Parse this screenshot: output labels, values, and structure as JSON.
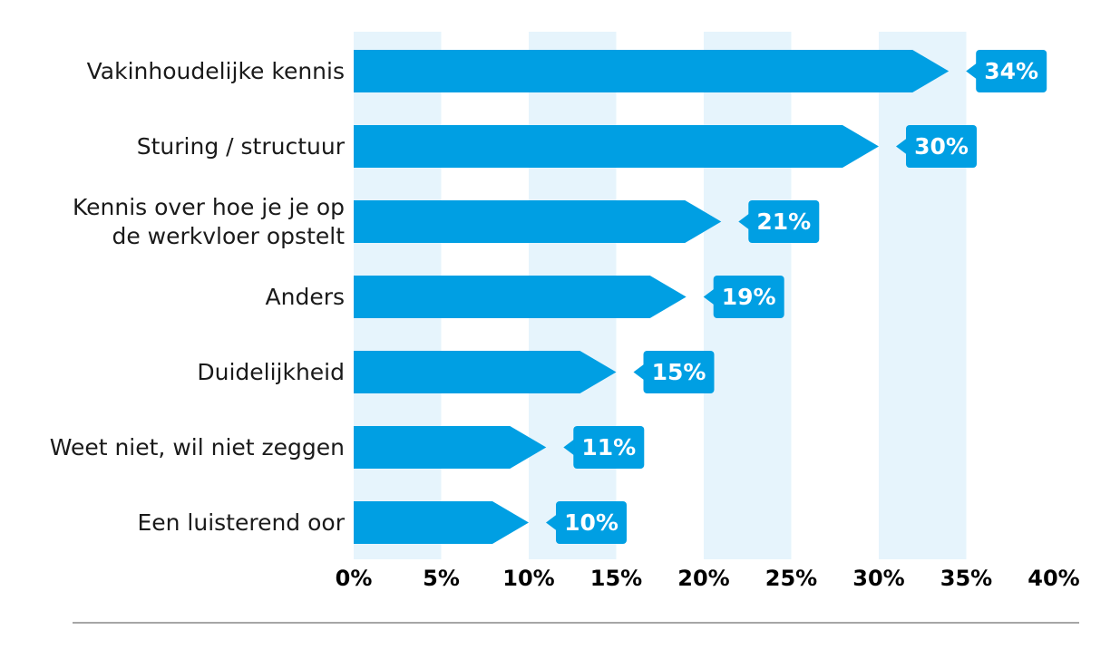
{
  "colors": {
    "bar": "#009fe3",
    "band": "#e6f4fc",
    "text": "#1a1a1a",
    "label_text": "#ffffff",
    "rule": "#a6a6a6"
  },
  "chart_data": {
    "type": "bar",
    "orientation": "horizontal",
    "categories": [
      "Vakinhoudelijke kennis",
      "Sturing / structuur",
      "Kennis over hoe je je op\nde werkvloer opstelt",
      "Anders",
      "Duidelijkheid",
      "Weet niet, wil niet zeggen",
      "Een luisterend oor"
    ],
    "values": [
      34,
      30,
      21,
      19,
      15,
      11,
      10
    ],
    "value_labels": [
      "34%",
      "30%",
      "21%",
      "19%",
      "15%",
      "11%",
      "10%"
    ],
    "xlim": [
      0,
      40
    ],
    "xticks": [
      0,
      5,
      10,
      15,
      20,
      25,
      30,
      35,
      40
    ],
    "xtick_labels": [
      "0%",
      "5%",
      "10%",
      "15%",
      "20%",
      "25%",
      "30%",
      "35%",
      "40%"
    ],
    "title": "",
    "xlabel": "",
    "ylabel": "",
    "grid": "alternating vertical bands",
    "legend": "none"
  }
}
